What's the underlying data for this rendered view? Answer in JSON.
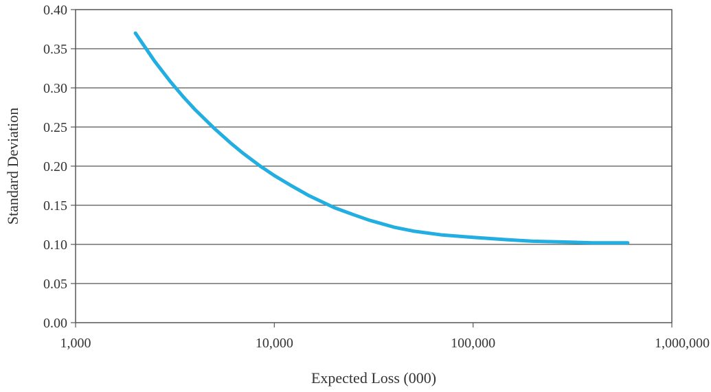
{
  "chart_data": {
    "type": "line",
    "title": "",
    "xlabel": "Expected Loss (000)",
    "ylabel": "Standard Deviation",
    "x_scale": "log",
    "xlim": [
      1000,
      1000000
    ],
    "ylim": [
      0,
      0.4
    ],
    "grid": true,
    "legend": "none",
    "line_color": "#22aee0",
    "x_ticks": [
      1000,
      10000,
      100000,
      1000000
    ],
    "x_tick_labels": [
      "1,000",
      "10,000",
      "100,000",
      "1,000,000"
    ],
    "y_ticks": [
      0,
      0.05,
      0.1,
      0.15,
      0.2,
      0.25,
      0.3,
      0.35,
      0.4
    ],
    "y_tick_labels": [
      "0.00",
      "0.05",
      "0.10",
      "0.15",
      "0.20",
      "0.25",
      "0.30",
      "0.35",
      "0.40"
    ],
    "series": [
      {
        "x": [
          2000,
          2500,
          3000,
          3500,
          4000,
          5000,
          6000,
          7000,
          8500,
          10000,
          12000,
          15000,
          20000,
          25000,
          30000,
          40000,
          50000,
          70000,
          100000,
          150000,
          200000,
          300000,
          400000,
          600000
        ],
        "y": [
          0.37,
          0.334,
          0.308,
          0.288,
          0.272,
          0.248,
          0.23,
          0.216,
          0.2,
          0.188,
          0.176,
          0.162,
          0.147,
          0.138,
          0.131,
          0.122,
          0.117,
          0.112,
          0.109,
          0.106,
          0.104,
          0.103,
          0.102,
          0.102
        ]
      }
    ]
  }
}
